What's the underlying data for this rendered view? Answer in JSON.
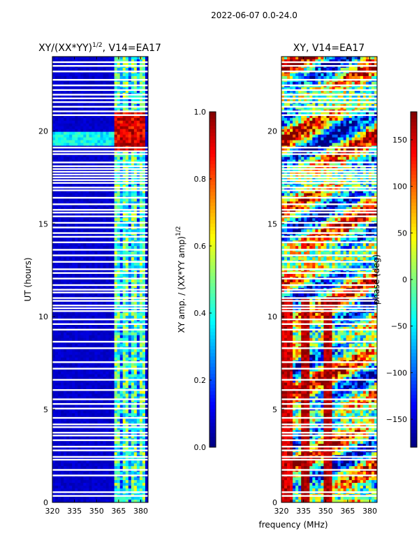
{
  "suptitle": "2022-06-07 0.0-24.0",
  "xlabel_shared": "frequency (MHz)",
  "colors": {
    "jet": [
      "#00007f",
      "#0000ff",
      "#007fff",
      "#00ffff",
      "#7fff7f",
      "#ffff00",
      "#ff7f00",
      "#ff0000",
      "#7f0000"
    ],
    "gap": "#ffffff",
    "axis": "#000000"
  },
  "chart_data": [
    {
      "type": "heatmap",
      "title_main": "XY/(XX*YY)",
      "title_sup": "1/2",
      "title_rest": ", V14=EA17",
      "xlabel": "",
      "ylabel": "UT (hours)",
      "xlim": [
        320,
        385
      ],
      "ylim": [
        0,
        24
      ],
      "xticks": [
        "320",
        "335",
        "350",
        "365",
        "380"
      ],
      "xtick_values": [
        320,
        335,
        350,
        365,
        380
      ],
      "yticks": [
        "0",
        "5",
        "10",
        "15",
        "20"
      ],
      "ytick_values": [
        0,
        5,
        10,
        15,
        20
      ],
      "colorbar": {
        "label_main": "XY amp. / (XX*YY amp)",
        "label_sup": "1/2",
        "range": [
          0.0,
          1.0
        ],
        "ticks": [
          "0.0",
          "0.2",
          "0.4",
          "0.6",
          "0.8",
          "1.0"
        ],
        "tick_values": [
          0.0,
          0.2,
          0.4,
          0.6,
          0.8,
          1.0
        ]
      },
      "bright_band_mhz": [
        362,
        383
      ],
      "hot_region": {
        "ut": [
          18.9,
          21.0
        ],
        "mhz": [
          362,
          383
        ],
        "level": 0.9
      },
      "baseline_level": 0.05,
      "band_level": 0.45
    },
    {
      "type": "heatmap",
      "title": "XY, V14=EA17",
      "xlabel": "frequency (MHz)",
      "ylabel": "",
      "xlim": [
        320,
        385
      ],
      "ylim": [
        0,
        24
      ],
      "xticks": [
        "320",
        "335",
        "350",
        "365",
        "380"
      ],
      "xtick_values": [
        320,
        335,
        350,
        365,
        380
      ],
      "yticks": [
        "0",
        "5",
        "10",
        "15",
        "20"
      ],
      "ytick_values": [
        0,
        5,
        10,
        15,
        20
      ],
      "colorbar": {
        "label": "phase (deg)",
        "range": [
          -180,
          180
        ],
        "ticks": [
          "−150",
          "−100",
          "−50",
          "0",
          "50",
          "100",
          "150"
        ],
        "tick_values": [
          -150,
          -100,
          -50,
          0,
          50,
          100,
          150
        ]
      },
      "stripes_mhz": [
        336,
        351
      ],
      "stripes_ut": [
        0,
        11
      ]
    }
  ],
  "gap_rows_ut": [
    0.35,
    0.55,
    1.45,
    1.75,
    2.3,
    2.45,
    2.8,
    3.0,
    3.35,
    3.6,
    3.75,
    4.05,
    4.2,
    4.55,
    5.05,
    5.3,
    5.55,
    6.05,
    6.6,
    7.2,
    7.55,
    8.3,
    8.65,
    9.3,
    9.6,
    9.85,
    10.3,
    10.45,
    10.6,
    10.85,
    11.0,
    11.3,
    11.45,
    11.7,
    12.05,
    12.35,
    12.55,
    12.95,
    13.3,
    13.6,
    14.0,
    14.3,
    14.5,
    14.8,
    15.05,
    15.4,
    15.6,
    15.75,
    16.05,
    16.4,
    16.8,
    16.95,
    17.2,
    17.35,
    17.5,
    17.65,
    17.8,
    17.95,
    18.1,
    18.3,
    18.75,
    18.9,
    19.1,
    20.85,
    21.05,
    21.3,
    21.55,
    21.75,
    21.95,
    22.2,
    22.45,
    22.75,
    23.2,
    23.5,
    23.7
  ]
}
